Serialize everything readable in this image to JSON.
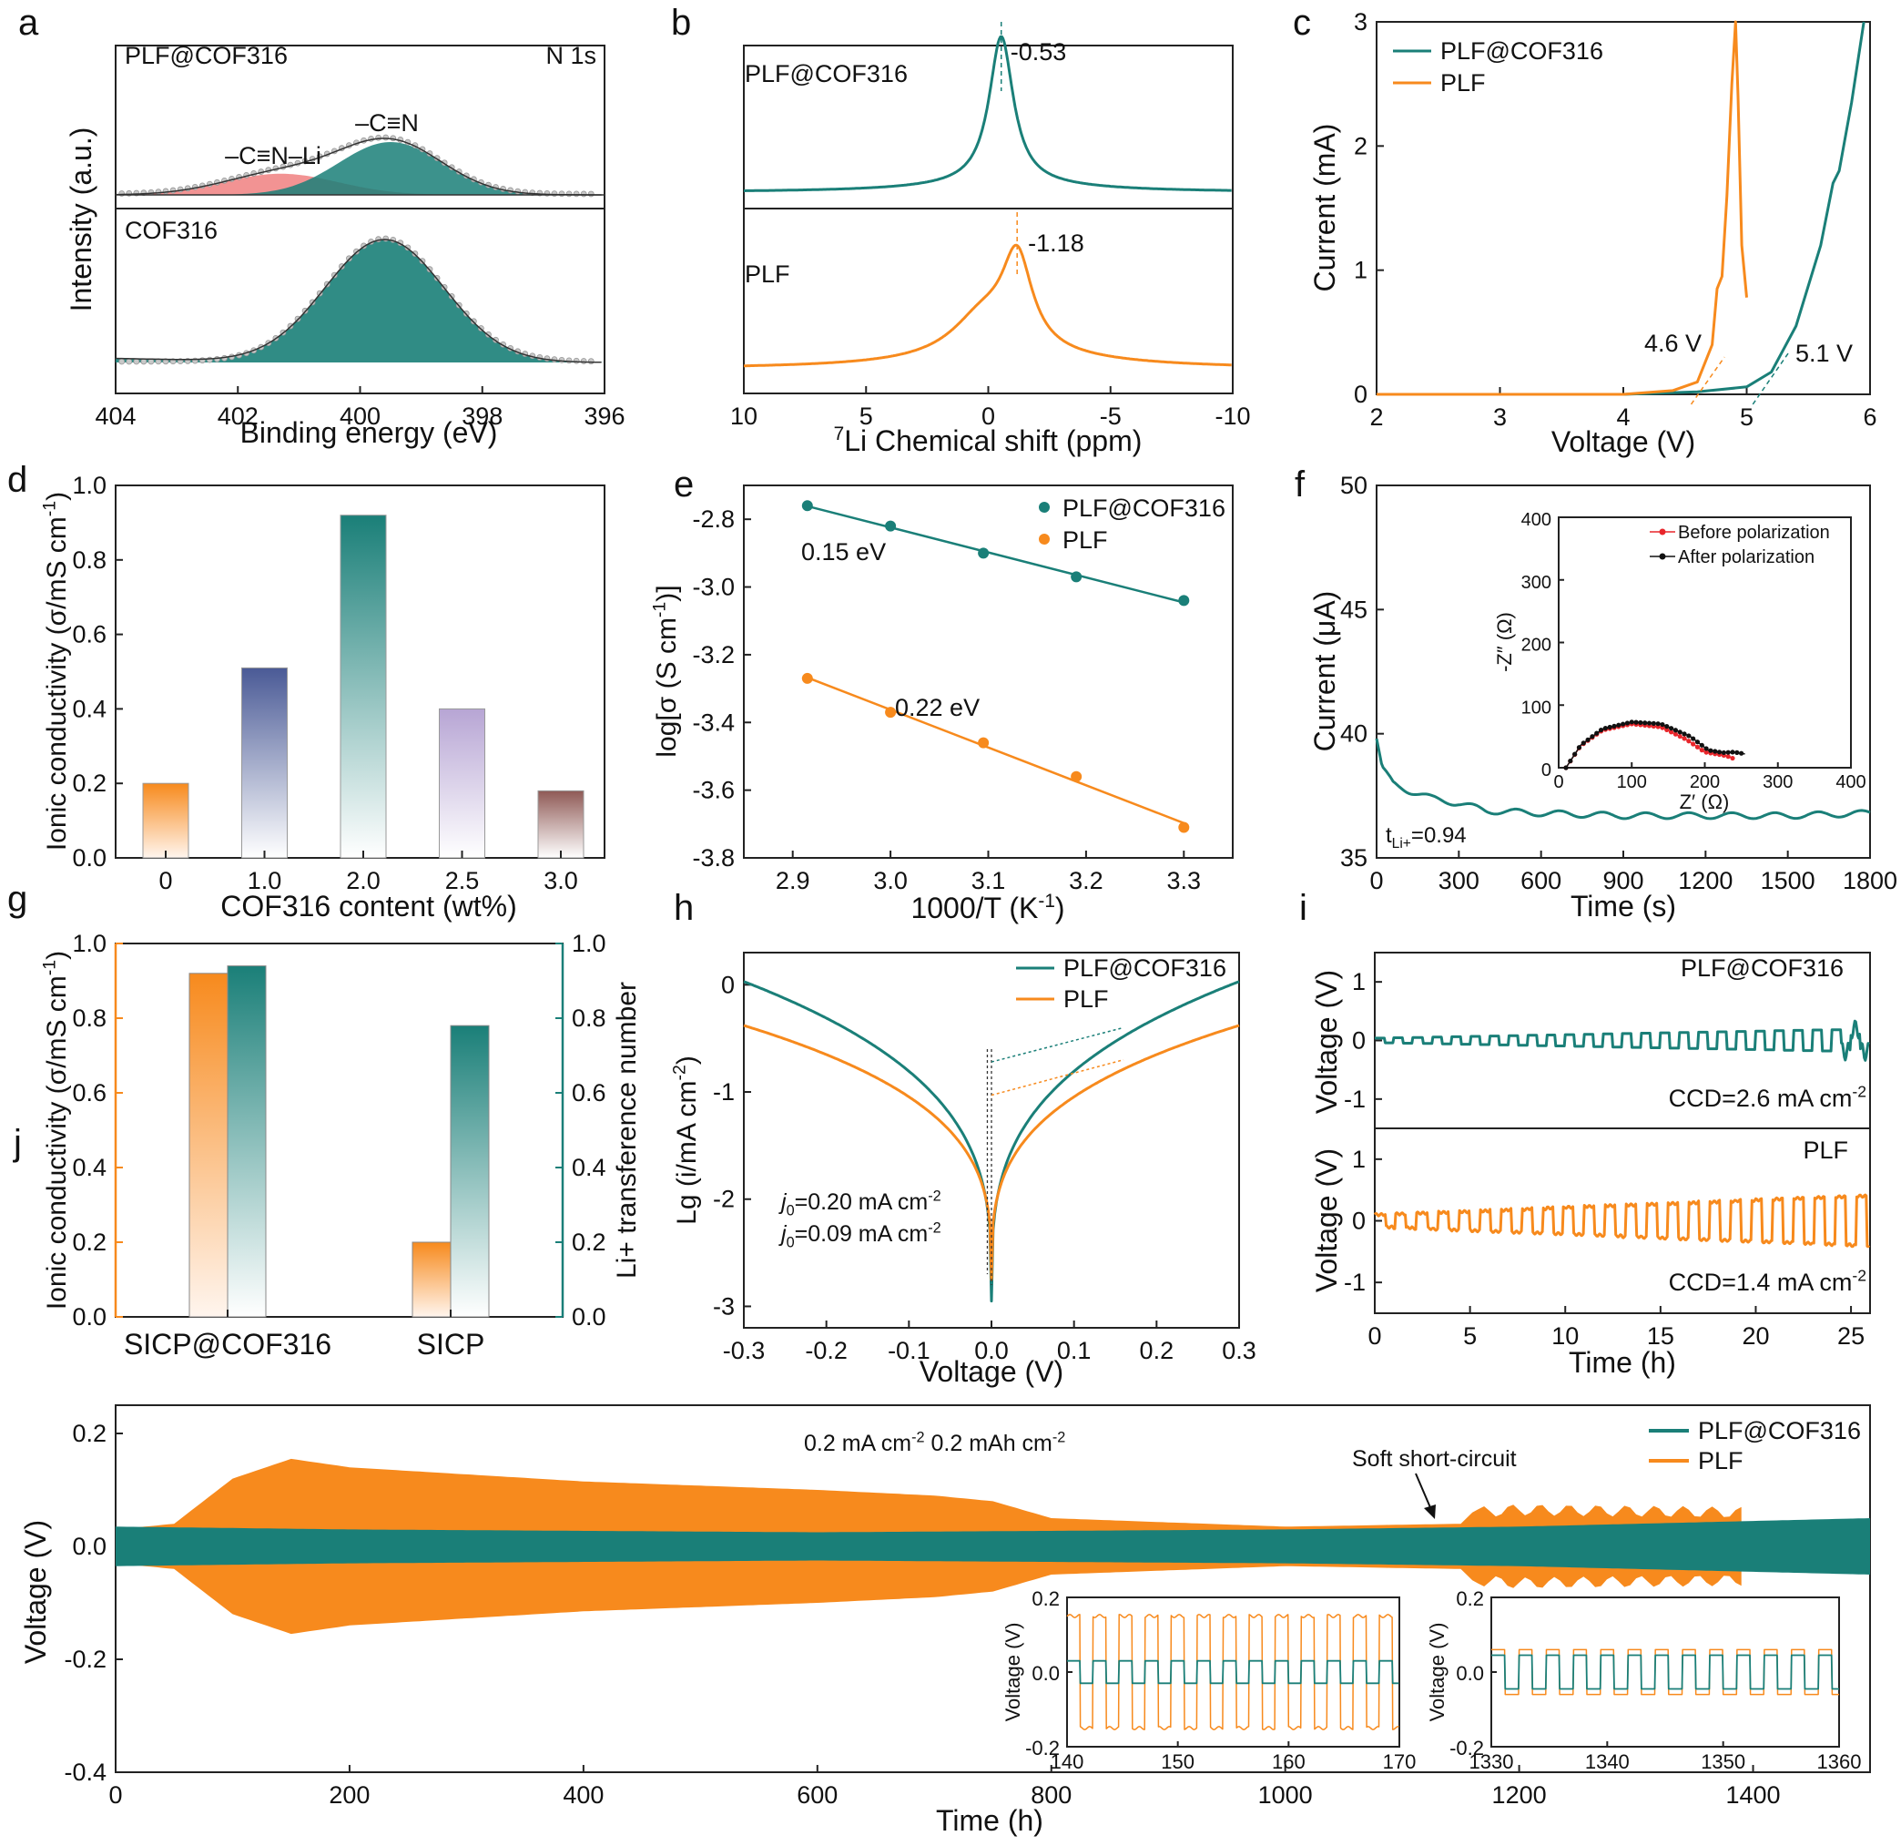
{
  "colors": {
    "teal": "#1a7f78",
    "orange": "#f78a1d",
    "pink": "#f08080",
    "navy": "#4a5a96",
    "lavender": "#b7a5d4",
    "brown": "#8f5a56",
    "black": "#111111",
    "red": "#e8262b",
    "grey": "#9a9a9a"
  },
  "chart_data": [
    {
      "panel": "a",
      "type": "area",
      "top_label": "PLF@COF316",
      "top_label_right": "N 1s",
      "bottom_label": "COF316",
      "peak_labels": [
        "–C≡N–Li",
        "–C≡N"
      ],
      "xlabel": "Binding energy (eV)",
      "ylabel": "Intensity (a.u.)",
      "xlim": [
        404,
        396
      ],
      "xticks": [
        "404",
        "402",
        "400",
        "398",
        "396"
      ],
      "series": [
        {
          "name": "–C≡N–Li",
          "center_eV": 401.3,
          "fwhm_eV": 2.2,
          "rel_height": 0.4
        },
        {
          "name": "–C≡N",
          "center_eV": 399.5,
          "fwhm_eV": 2.0,
          "rel_height": 1.0
        },
        {
          "name": "COF316",
          "center_eV": 399.6,
          "fwhm_eV": 2.3,
          "rel_height": 1.0
        }
      ]
    },
    {
      "panel": "b",
      "type": "line",
      "top_label": "PLF@COF316",
      "bottom_label": "PLF",
      "xlabel": "7Li Chemical shift (ppm)",
      "xlabel_super": "7",
      "xlabel_text": "Li Chemical shift (ppm)",
      "xlim": [
        10,
        -10
      ],
      "xticks": [
        "10",
        "5",
        "0",
        "-5",
        "-10"
      ],
      "peak_labels": [
        "-0.53",
        "-1.18"
      ],
      "series": [
        {
          "name": "PLF@COF316",
          "peak_ppm": -0.53
        },
        {
          "name": "PLF",
          "peak_ppm": -1.18
        }
      ]
    },
    {
      "panel": "c",
      "type": "line",
      "xlabel": "Voltage (V)",
      "ylabel": "Current (mA)",
      "xlim": [
        2,
        6
      ],
      "ylim": [
        0,
        3
      ],
      "xticks": [
        "2",
        "3",
        "4",
        "5",
        "6"
      ],
      "yticks": [
        "0",
        "1",
        "2",
        "3"
      ],
      "legend": [
        "PLF@COF316",
        "PLF"
      ],
      "legend_position": "top-left",
      "annotations": [
        "4.6 V",
        "5.1 V"
      ],
      "series": [
        {
          "name": "PLF@COF316",
          "x": [
            2.0,
            4.0,
            4.6,
            5.0,
            5.2,
            5.4,
            5.6,
            5.7,
            5.75,
            5.85,
            5.95
          ],
          "y": [
            0.0,
            0.0,
            0.02,
            0.06,
            0.18,
            0.55,
            1.2,
            1.7,
            1.8,
            2.35,
            3.0
          ]
        },
        {
          "name": "PLF",
          "x": [
            2.0,
            4.0,
            4.4,
            4.6,
            4.72,
            4.76,
            4.8,
            4.84,
            4.88,
            4.91,
            4.93,
            4.96,
            5.0
          ],
          "y": [
            0.0,
            0.0,
            0.03,
            0.1,
            0.4,
            0.85,
            0.95,
            1.6,
            2.5,
            3.0,
            2.4,
            1.2,
            0.78
          ]
        }
      ]
    },
    {
      "panel": "d",
      "type": "bar",
      "xlabel": "COF316 content (wt%)",
      "ylabel": "Ionic conductivity (σ/mS cm-1)",
      "ylabel_main": "Ionic conductivity (σ/mS cm",
      "ylabel_sup": "-1",
      "ylabel_end": ")",
      "categories": [
        "0",
        "1.0",
        "2.0",
        "2.5",
        "3.0"
      ],
      "values": [
        0.2,
        0.51,
        0.92,
        0.4,
        0.18
      ],
      "ylim": [
        0.0,
        1.0
      ],
      "yticks": [
        "0.0",
        "0.2",
        "0.4",
        "0.6",
        "0.8",
        "1.0"
      ]
    },
    {
      "panel": "e",
      "type": "scatter",
      "xlabel": "1000/T (K-1)",
      "xlabel_main": "1000/T (K",
      "xlabel_sup": "-1",
      "xlabel_end": ")",
      "ylabel_main": "log[σ (S cm",
      "ylabel_sup": "-1",
      "ylabel_end": ")]",
      "xlim": [
        2.85,
        3.35
      ],
      "ylim": [
        -3.8,
        -2.7
      ],
      "xticks": [
        "2.9",
        "3.0",
        "3.1",
        "3.2",
        "3.3"
      ],
      "yticks": [
        "-3.8",
        "-3.6",
        "-3.4",
        "-3.2",
        "-3.0",
        "-2.8"
      ],
      "legend": [
        "PLF@COF316",
        "PLF"
      ],
      "legend_position": "top-right",
      "annotations": [
        "0.15 eV",
        "0.22 eV"
      ],
      "series": [
        {
          "name": "PLF@COF316",
          "x": [
            2.915,
            3.0,
            3.095,
            3.19,
            3.3
          ],
          "y": [
            -2.76,
            -2.82,
            -2.9,
            -2.97,
            -3.04
          ]
        },
        {
          "name": "PLF",
          "x": [
            2.915,
            3.0,
            3.095,
            3.19,
            3.3
          ],
          "y": [
            -3.27,
            -3.37,
            -3.46,
            -3.56,
            -3.71
          ]
        }
      ]
    },
    {
      "panel": "f",
      "type": "line",
      "xlabel": "Time (s)",
      "ylabel": "Current (μA)",
      "xlim": [
        0,
        1800
      ],
      "ylim": [
        35,
        50
      ],
      "xticks": [
        "0",
        "300",
        "600",
        "900",
        "1200",
        "1500",
        "1800"
      ],
      "yticks": [
        "35",
        "40",
        "45",
        "50"
      ],
      "annotation_main": "t",
      "annotation_sub": "Li+",
      "annotation_end": "=0.94",
      "series": [
        {
          "name": "current",
          "x": [
            0,
            20,
            60,
            120,
            200,
            300,
            400,
            600,
            900,
            1200,
            1500,
            1800
          ],
          "y": [
            39.8,
            38.6,
            38.0,
            37.7,
            37.4,
            37.2,
            36.9,
            36.8,
            36.7,
            36.7,
            36.7,
            36.8
          ]
        }
      ],
      "inset": {
        "xlabel": "Z′ (Ω)",
        "ylabel": "-Z″ (Ω)",
        "xlim": [
          0,
          400
        ],
        "ylim": [
          0,
          400
        ],
        "xticks": [
          "0",
          "100",
          "200",
          "300",
          "400"
        ],
        "yticks": [
          "0",
          "100",
          "200",
          "300",
          "400"
        ],
        "legend": [
          "Before polarization",
          "After polarization"
        ],
        "series": [
          {
            "name": "Before polarization",
            "x": [
              10,
              30,
              60,
              100,
              140,
              175,
              200,
              215,
              225,
              235,
              240
            ],
            "y": [
              0,
              35,
              60,
              70,
              65,
              45,
              25,
              22,
              20,
              17,
              14
            ]
          },
          {
            "name": "After polarization",
            "x": [
              10,
              30,
              60,
              100,
              140,
              180,
              205,
              225,
              240,
              255
            ],
            "y": [
              0,
              36,
              62,
              73,
              70,
              50,
              28,
              24,
              25,
              22
            ]
          }
        ]
      }
    },
    {
      "panel": "g",
      "type": "bar",
      "categories": [
        "SICP@COF316",
        "SICP"
      ],
      "ylabel_left_main": "Ionic conductivity (σ/mS cm",
      "ylabel_left_sup": "-1",
      "ylabel_left_end": ")",
      "ylabel_right": "Li+ transference number",
      "ylim": [
        0.0,
        1.0
      ],
      "yticks": [
        "0.0",
        "0.2",
        "0.4",
        "0.6",
        "0.8",
        "1.0"
      ],
      "series": [
        {
          "name": "Ionic conductivity",
          "values": [
            0.92,
            0.2
          ]
        },
        {
          "name": "Li+ transference number",
          "values": [
            0.94,
            0.78
          ]
        }
      ]
    },
    {
      "panel": "h",
      "type": "line",
      "xlabel": "Voltage (V)",
      "ylabel_main": "Lg (i/mA cm",
      "ylabel_sup": "-2",
      "ylabel_end": ")",
      "xlim": [
        -0.3,
        0.3
      ],
      "ylim": [
        -3.2,
        0.3
      ],
      "xticks": [
        "-0.3",
        "-0.2",
        "-0.1",
        "0.0",
        "0.1",
        "0.2",
        "0.3"
      ],
      "yticks": [
        "-3",
        "-2",
        "-1",
        "0"
      ],
      "legend": [
        "PLF@COF316",
        "PLF"
      ],
      "legend_position": "top-right",
      "annotations": [
        {
          "j": "j",
          "sub": "0",
          "text": "=0.20 mA cm",
          "sup": "-2"
        },
        {
          "j": "j",
          "sub": "0",
          "text": "=0.09 mA cm",
          "sup": "-2"
        }
      ],
      "series": [
        {
          "name": "PLF@COF316",
          "j0": 0.2,
          "min": -2.95
        },
        {
          "name": "PLF",
          "j0": 0.09,
          "min": -2.75
        }
      ]
    },
    {
      "panel": "i",
      "type": "line",
      "xlabel": "Time (h)",
      "ylabel": "Voltage (V)",
      "xlim": [
        0,
        26
      ],
      "xticks": [
        "0",
        "5",
        "10",
        "15",
        "20",
        "25"
      ],
      "ylim": [
        -1.5,
        1.5
      ],
      "yticks": [
        "-1",
        "0",
        "1"
      ],
      "top_label": "PLF@COF316",
      "bottom_label": "PLF",
      "ccd_top_main": "CCD=2.6 mA cm",
      "ccd_bottom_main": "CCD=1.4 mA cm",
      "ccd_sup": "-2"
    },
    {
      "panel": "j",
      "type": "line",
      "xlabel": "Time (h)",
      "ylabel": "Voltage (V)",
      "xlim": [
        0,
        1500
      ],
      "ylim": [
        -0.4,
        0.25
      ],
      "xticks": [
        "0",
        "200",
        "400",
        "600",
        "800",
        "1000",
        "1200",
        "1400"
      ],
      "yticks": [
        "-0.4",
        "-0.2",
        "0.0",
        "0.2"
      ],
      "legend": [
        "PLF@COF316",
        "PLF"
      ],
      "legend_position": "top-right",
      "condition_1": "0.2 mA cm",
      "condition_2": "0.2 mAh cm",
      "condition_sup": "-2",
      "annotation": "Soft short-circuit",
      "series": [
        {
          "name": "PLF",
          "x": [
            0,
            50,
            100,
            150,
            200,
            400,
            600,
            700,
            750,
            800,
            1000,
            1150,
            1160,
            1200,
            1390
          ],
          "amplitude": [
            0.03,
            0.04,
            0.12,
            0.155,
            0.14,
            0.115,
            0.1,
            0.09,
            0.08,
            0.05,
            0.035,
            0.04,
            0.06,
            0.065,
            0.06
          ]
        },
        {
          "name": "PLF@COF316",
          "x": [
            0,
            200,
            600,
            1000,
            1200,
            1500
          ],
          "amplitude": [
            0.035,
            0.03,
            0.025,
            0.03,
            0.035,
            0.05
          ]
        }
      ],
      "insets": [
        {
          "xlim": [
            140,
            170
          ],
          "xticks": [
            "140",
            "150",
            "160",
            "170"
          ],
          "ylim": [
            -0.2,
            0.2
          ],
          "yticks": [
            "-0.2",
            "0.0",
            "0.2"
          ],
          "ylabel": "Voltage (V)",
          "orange_amp": 0.15,
          "teal_amp": 0.03
        },
        {
          "xlim": [
            1330,
            1360
          ],
          "xticks": [
            "1330",
            "1340",
            "1350",
            "1360"
          ],
          "ylim": [
            -0.2,
            0.2
          ],
          "yticks": [
            "-0.2",
            "0.0",
            "0.2"
          ],
          "ylabel": "Voltage (V)",
          "orange_amp": 0.06,
          "teal_amp": 0.045
        }
      ]
    }
  ],
  "panel_labels": [
    "a",
    "b",
    "c",
    "d",
    "e",
    "f",
    "g",
    "h",
    "i",
    "j"
  ]
}
